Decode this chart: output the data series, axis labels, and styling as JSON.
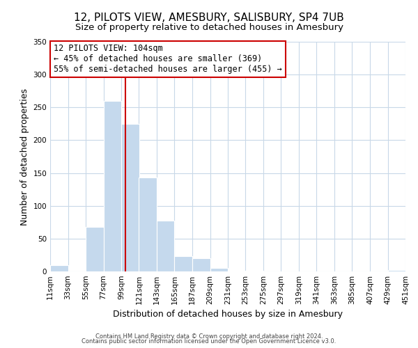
{
  "title": "12, PILOTS VIEW, AMESBURY, SALISBURY, SP4 7UB",
  "subtitle": "Size of property relative to detached houses in Amesbury",
  "xlabel": "Distribution of detached houses by size in Amesbury",
  "ylabel": "Number of detached properties",
  "bar_color": "#c5d9ed",
  "bin_edges": [
    11,
    33,
    55,
    77,
    99,
    121,
    143,
    165,
    187,
    209,
    231,
    253,
    275,
    297,
    319,
    341,
    363,
    385,
    407,
    429,
    451
  ],
  "bar_heights": [
    10,
    0,
    68,
    260,
    225,
    143,
    77,
    23,
    20,
    5,
    1,
    1,
    0,
    0,
    0,
    0,
    0,
    0,
    0,
    2
  ],
  "vline_x": 104,
  "vline_color": "#cc0000",
  "ylim": [
    0,
    350
  ],
  "yticks": [
    0,
    50,
    100,
    150,
    200,
    250,
    300,
    350
  ],
  "annotation_line1": "12 PILOTS VIEW: 104sqm",
  "annotation_line2": "← 45% of detached houses are smaller (369)",
  "annotation_line3": "55% of semi-detached houses are larger (455) →",
  "footer_line1": "Contains HM Land Registry data © Crown copyright and database right 2024.",
  "footer_line2": "Contains public sector information licensed under the Open Government Licence v3.0.",
  "background_color": "#ffffff",
  "grid_color": "#c8d8e8",
  "title_fontsize": 11,
  "subtitle_fontsize": 9.5,
  "tick_label_fontsize": 7.5,
  "ylabel_fontsize": 9,
  "xlabel_fontsize": 9,
  "annotation_fontsize": 8.5,
  "footer_fontsize": 6
}
